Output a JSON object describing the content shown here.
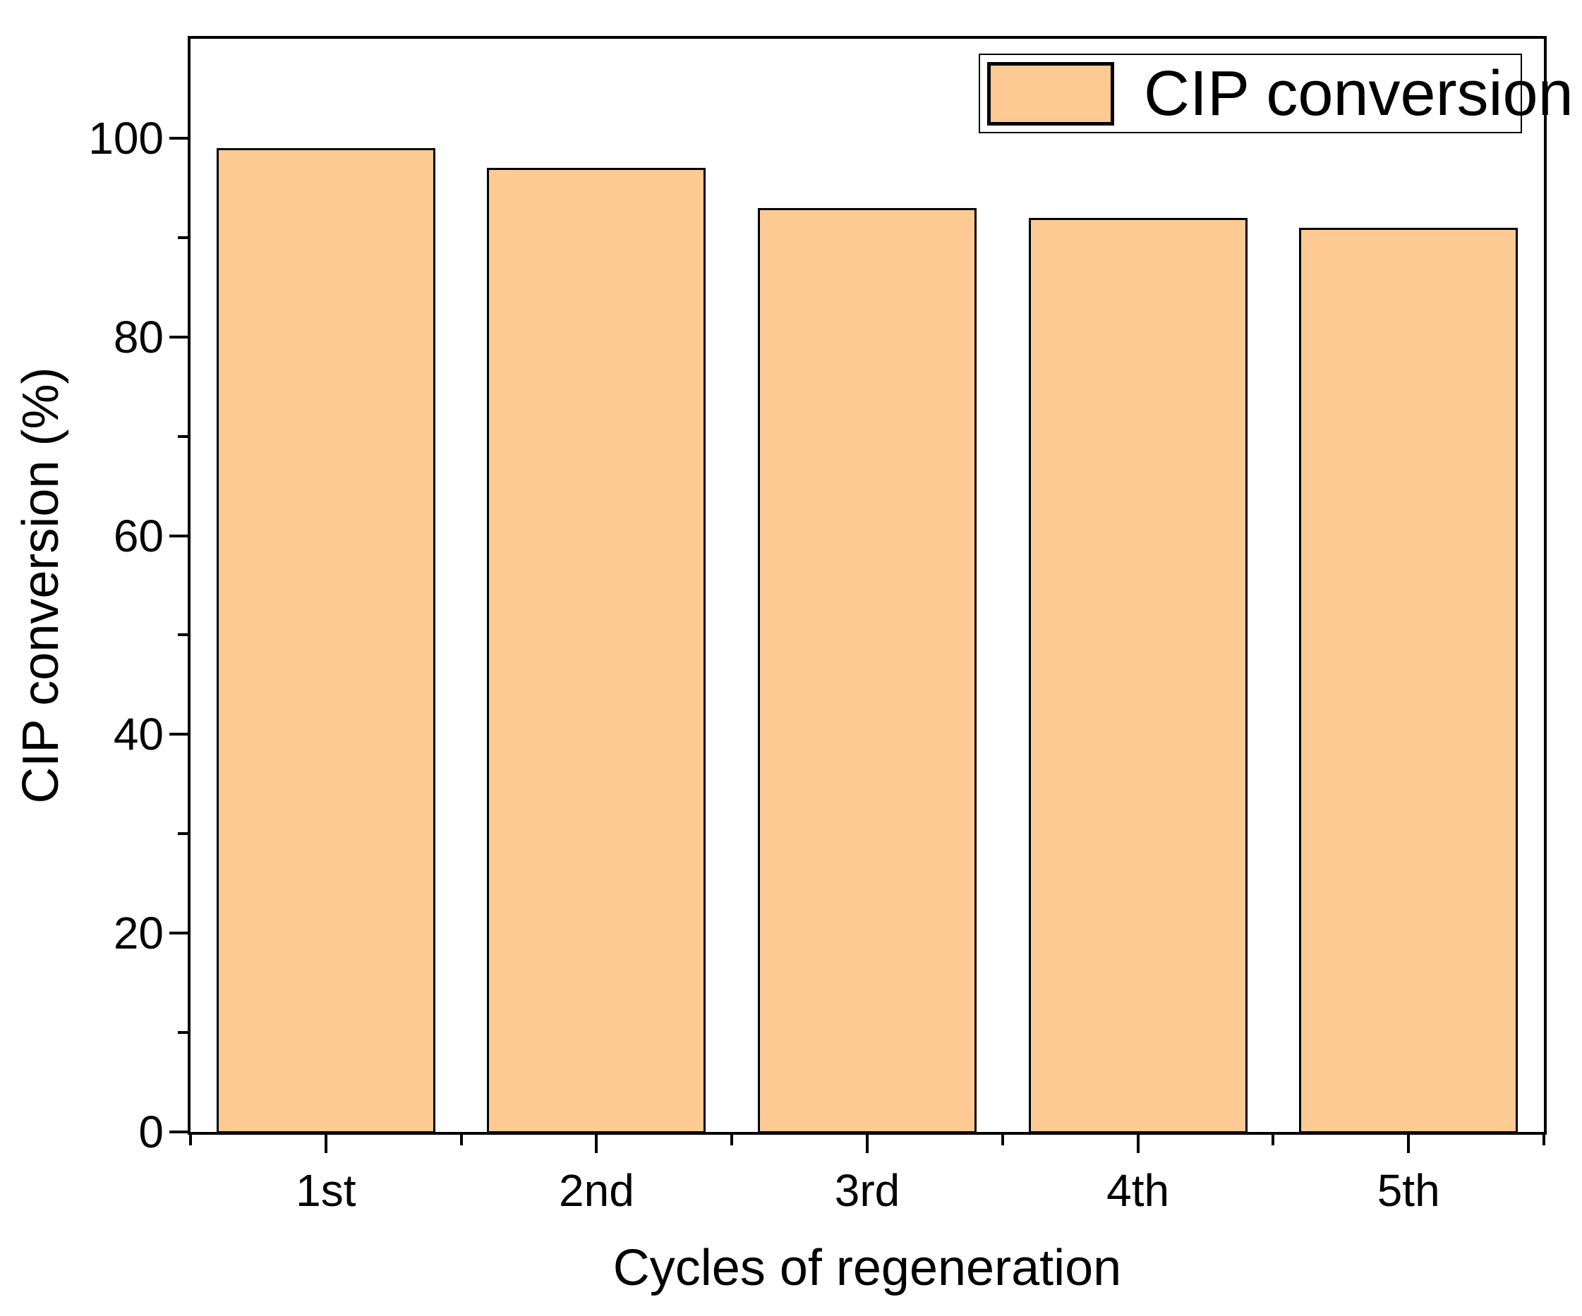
{
  "chart_data": {
    "type": "bar",
    "categories": [
      "1st",
      "2nd",
      "3rd",
      "4th",
      "5th"
    ],
    "values": [
      99,
      97,
      93,
      92,
      91
    ],
    "series": [
      {
        "name": "CIP conversion",
        "values": [
          99,
          97,
          93,
          92,
          91
        ]
      }
    ],
    "title": "",
    "xlabel": "Cycles of regeneration",
    "ylabel": "CIP conversion (%)",
    "ylim": [
      0,
      110
    ],
    "y_major_ticks": [
      0,
      20,
      40,
      60,
      80,
      100
    ],
    "y_minor_ticks": [
      10,
      30,
      50,
      70,
      90
    ],
    "grid": false,
    "legend": {
      "label": "CIP conversion",
      "position": "top-right"
    },
    "colors": {
      "bar_fill": "#FDCA94",
      "bar_border": "#000000",
      "axis": "#000000",
      "text": "#000000",
      "background": "#FFFFFF"
    }
  }
}
